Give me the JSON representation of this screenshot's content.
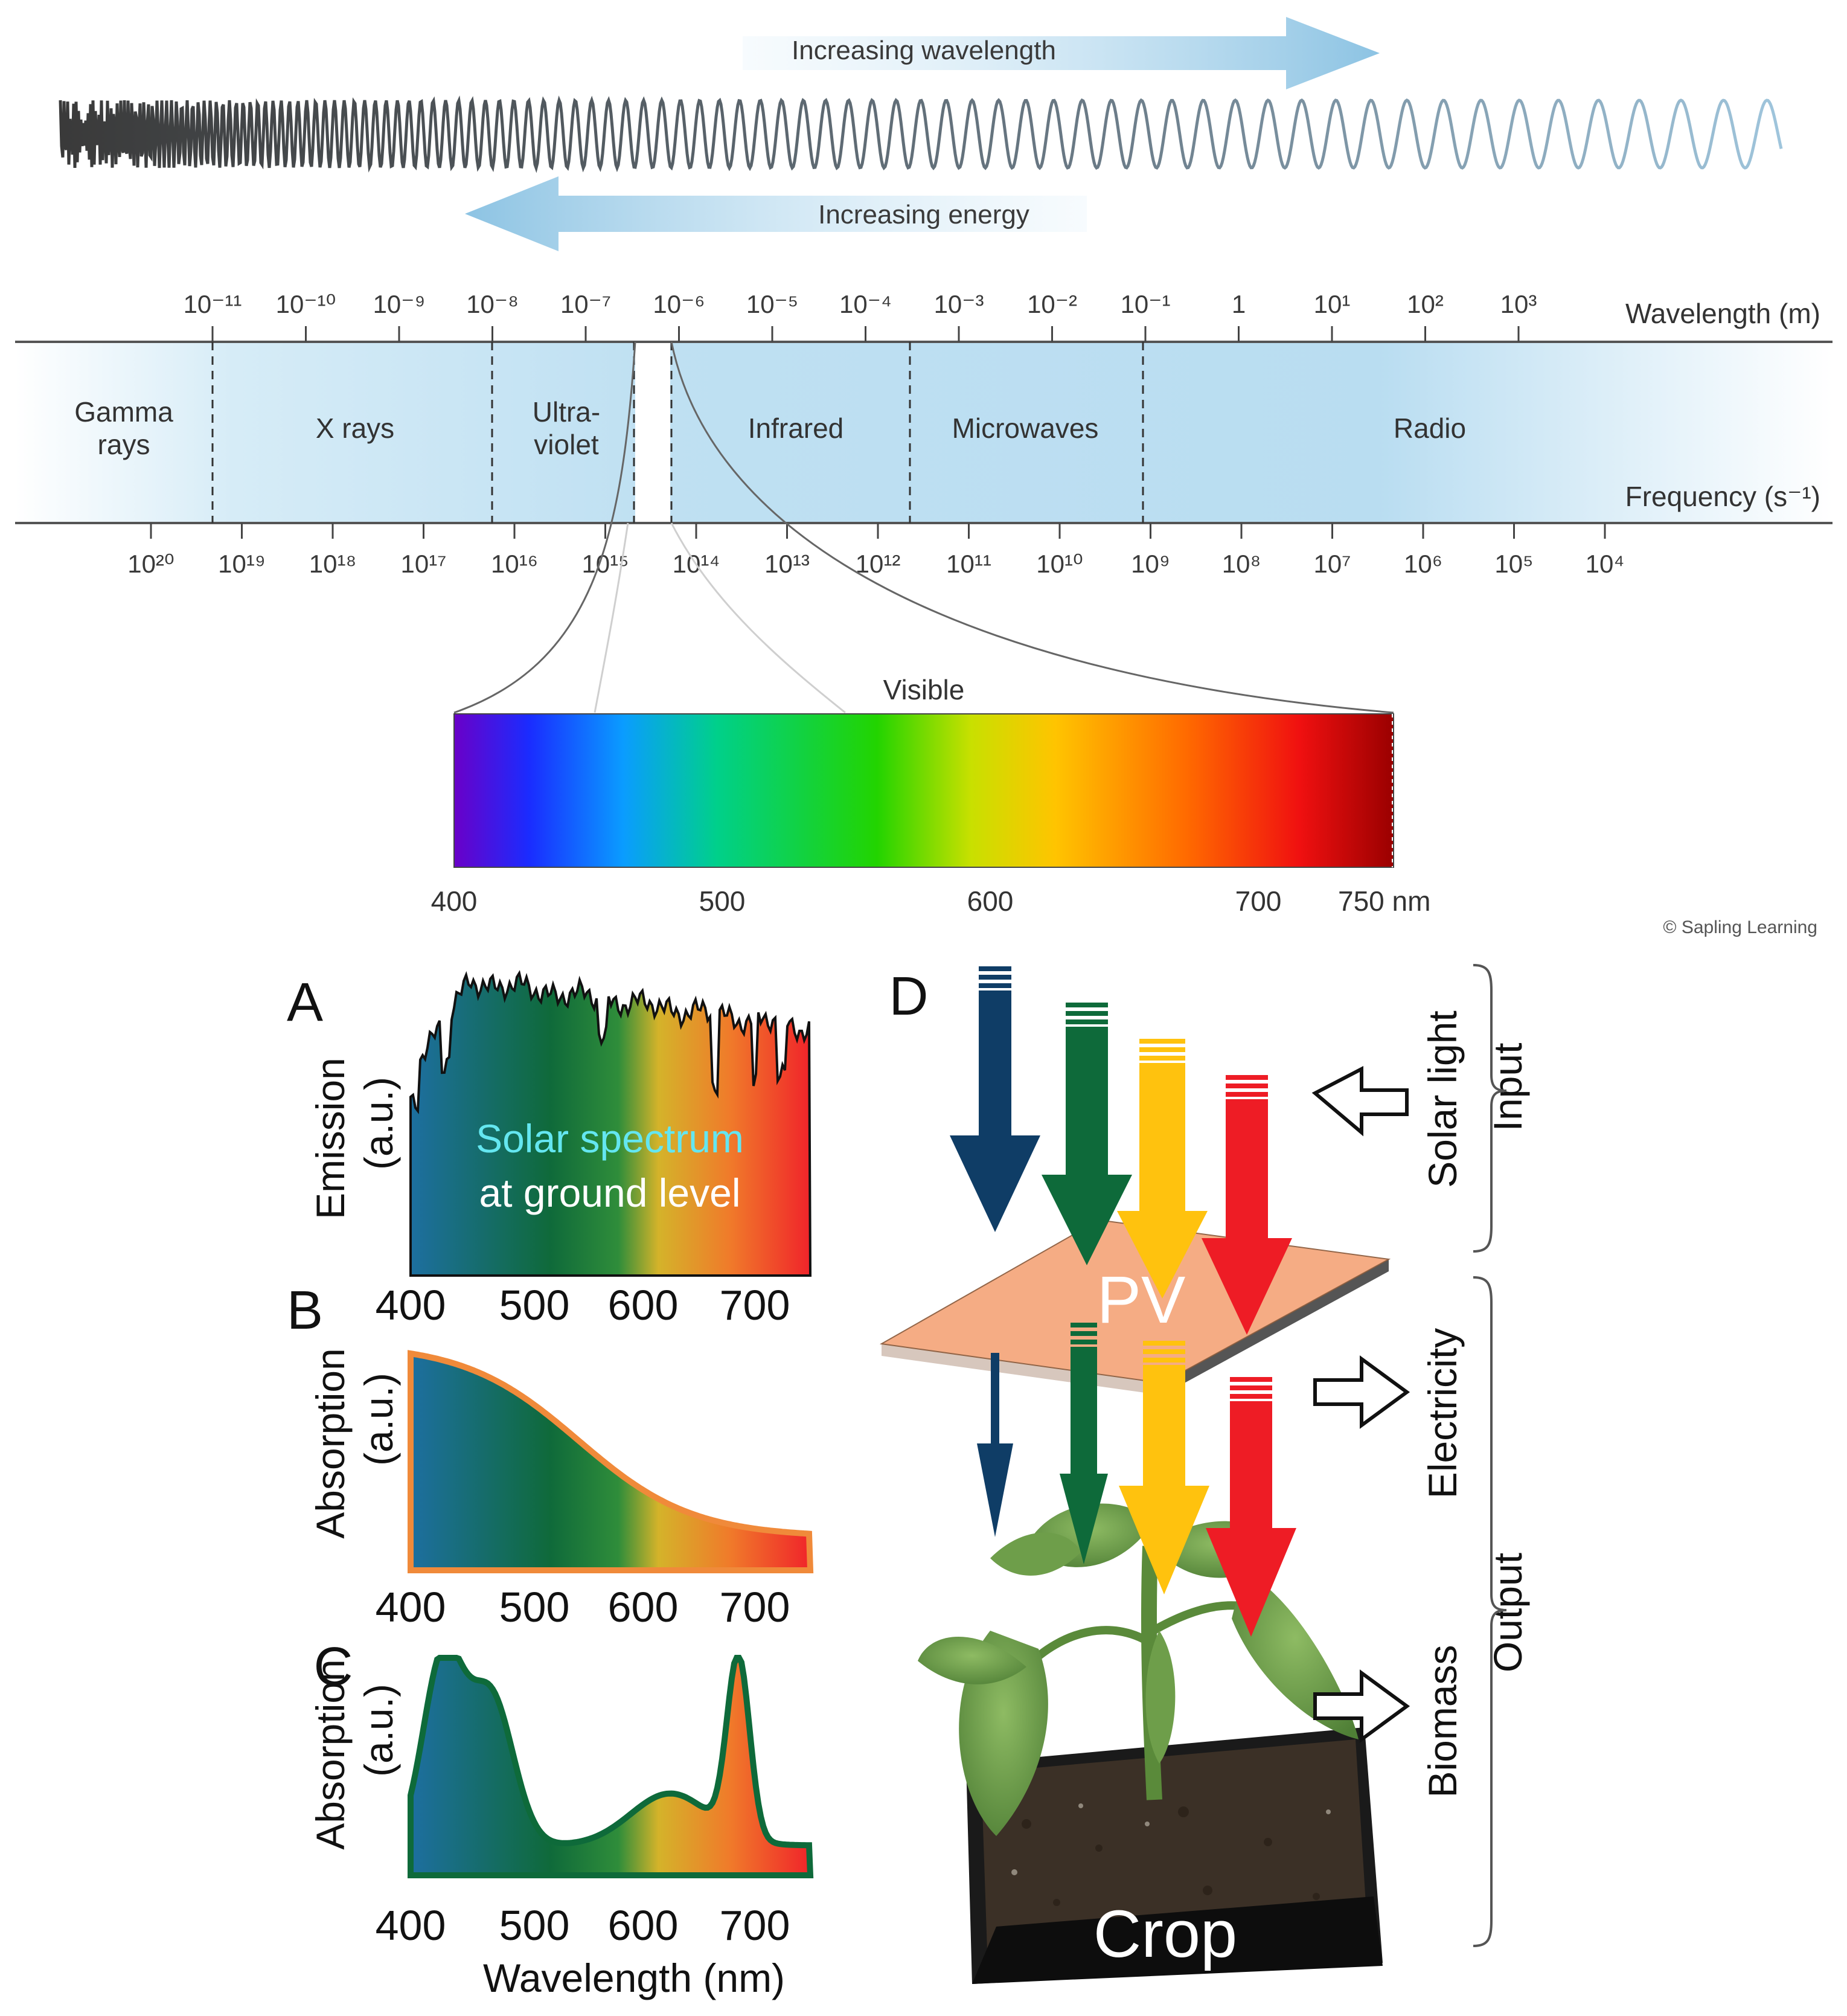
{
  "spectrum": {
    "arrow_wavelength": "Increasing wavelength",
    "arrow_energy": "Increasing energy",
    "wavelength_axis_label": "Wavelength (m)",
    "frequency_axis_label": "Frequency (s⁻¹)",
    "wavelength_ticks": [
      "10⁻¹¹",
      "10⁻¹⁰",
      "10⁻⁹",
      "10⁻⁸",
      "10⁻⁷",
      "10⁻⁶",
      "10⁻⁵",
      "10⁻⁴",
      "10⁻³",
      "10⁻²",
      "10⁻¹",
      "1",
      "10¹",
      "10²",
      "10³"
    ],
    "frequency_ticks": [
      "10²⁰",
      "10¹⁹",
      "10¹⁸",
      "10¹⁷",
      "10¹⁶",
      "10¹⁵",
      "10¹⁴",
      "10¹³",
      "10¹²",
      "10¹¹",
      "10¹⁰",
      "10⁹",
      "10⁸",
      "10⁷",
      "10⁶",
      "10⁵",
      "10⁴"
    ],
    "bands": {
      "gamma_1": "Gamma",
      "gamma_2": "rays",
      "xray": "X rays",
      "uv_1": "Ultra-",
      "uv_2": "violet",
      "infrared": "Infrared",
      "microwaves": "Microwaves",
      "radio": "Radio"
    },
    "visible_label": "Visible",
    "visible_ticks": [
      "400",
      "500",
      "600",
      "700",
      "750 nm"
    ],
    "credit": "© Sapling Learning"
  },
  "panels": {
    "A": {
      "letter": "A",
      "ylabel_1": "Emission",
      "ylabel_2": "(a.u.)",
      "caption_1": "Solar spectrum",
      "caption_2": "at ground level",
      "xticks": [
        "400",
        "500",
        "600",
        "700"
      ]
    },
    "B": {
      "letter": "B",
      "ylabel_1": "Absorption",
      "ylabel_2": "(a.u.)",
      "xticks": [
        "400",
        "500",
        "600",
        "700"
      ]
    },
    "C": {
      "letter": "C",
      "ylabel_1": "Absorption",
      "ylabel_2": "(a.u.)",
      "xticks": [
        "400",
        "500",
        "600",
        "700"
      ],
      "xlabel": "Wavelength (nm)"
    },
    "D": {
      "letter": "D",
      "pv_label": "PV",
      "crop_label": "Crop",
      "solar_light": "Solar light",
      "input": "Input",
      "electricity": "Electricity",
      "biomass": "Biomass",
      "output": "Output"
    }
  },
  "colors": {
    "arrow_blue": "#a9d2ea",
    "spectrum_band": "#bfe0f2",
    "arrow_navy": "#0f3d66",
    "arrow_green": "#0e6a3a",
    "arrow_yellow": "#ffc20e",
    "arrow_red": "#ee1c25",
    "pv_panel": "#f5a57a"
  }
}
